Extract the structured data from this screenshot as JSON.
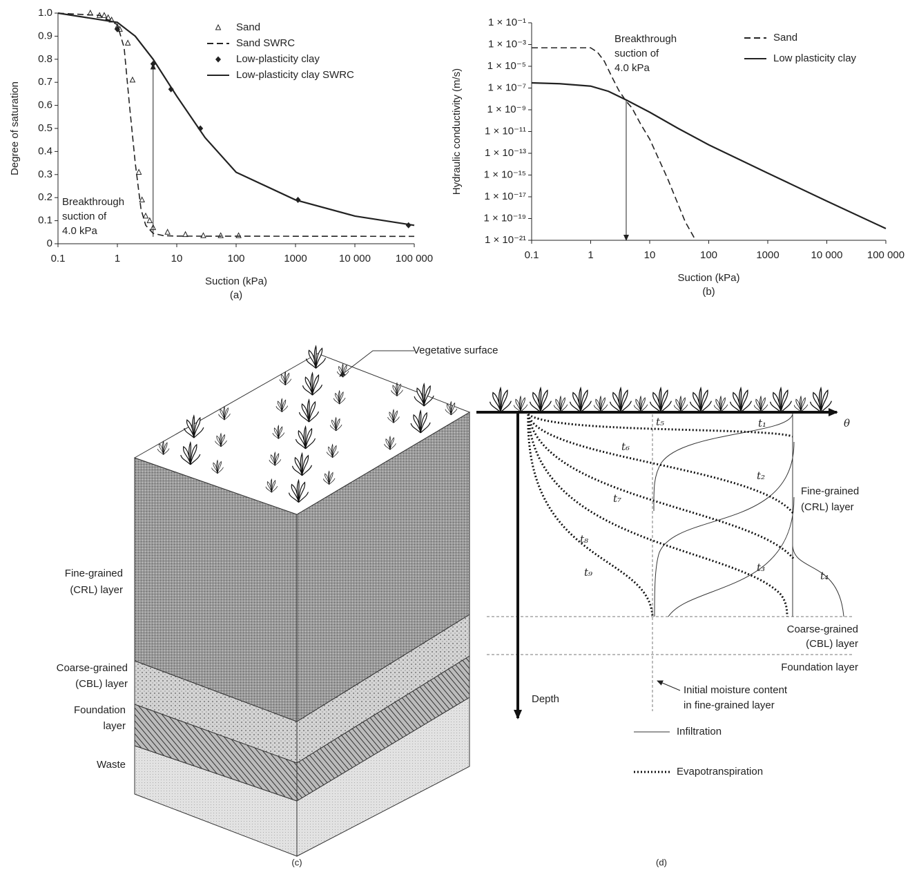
{
  "chart_data": [
    {
      "type": "line",
      "caption": "(a)",
      "xlabel": "Suction (kPa)",
      "ylabel": "Degree of saturation",
      "xscale": "log",
      "yscale": "linear",
      "xlim": [
        0.1,
        100000
      ],
      "ylim": [
        0,
        1
      ],
      "xticks": [
        0.1,
        1,
        10,
        100,
        1000,
        {
          "value": 10000,
          "label": "10 000"
        },
        {
          "value": 100000,
          "label": "100 000"
        }
      ],
      "yticks": [
        0,
        0.1,
        0.2,
        0.3,
        0.4,
        0.5,
        0.6,
        0.7,
        0.8,
        0.9,
        {
          "value": 1,
          "label": "1.0"
        }
      ],
      "legend": "upper right",
      "series": [
        {
          "name": "Sand",
          "color": "#222222",
          "marker": "triangle",
          "line_style": "none",
          "x": [
            0.35,
            0.5,
            0.6,
            0.7,
            0.8,
            1,
            1.1,
            1.5,
            1.8,
            2.3,
            2.6,
            3,
            3.5,
            4,
            7,
            14,
            28,
            55,
            110
          ],
          "values": [
            1.0,
            0.99,
            0.99,
            0.98,
            0.97,
            0.94,
            0.93,
            0.87,
            0.71,
            0.31,
            0.19,
            0.12,
            0.1,
            0.07,
            0.05,
            0.04,
            0.035,
            0.035,
            0.035
          ]
        },
        {
          "name": "Sand SWRC",
          "color": "#222222",
          "marker": "none",
          "line_style": "dashed",
          "x": [
            0.1,
            0.5,
            1,
            1.3,
            1.6,
            2,
            2.5,
            3,
            4,
            6,
            10,
            100000
          ],
          "values": [
            1.0,
            0.99,
            0.95,
            0.85,
            0.6,
            0.35,
            0.15,
            0.08,
            0.045,
            0.035,
            0.033,
            0.032
          ]
        },
        {
          "name": "Low-plasticity clay",
          "color": "#222222",
          "marker": "diamond",
          "line_style": "none",
          "x": [
            1,
            4,
            8,
            25,
            1100,
            80000
          ],
          "values": [
            0.93,
            0.78,
            0.67,
            0.5,
            0.19,
            0.08
          ]
        },
        {
          "name": "Low-plasticity clay SWRC",
          "color": "#222222",
          "marker": "none",
          "line_style": "solid",
          "x": [
            0.1,
            1,
            2,
            4,
            10,
            30,
            100,
            1000,
            10000,
            100000
          ],
          "values": [
            1.0,
            0.96,
            0.9,
            0.8,
            0.64,
            0.46,
            0.31,
            0.19,
            0.12,
            0.08
          ]
        }
      ],
      "annotation": {
        "lines": [
          "Breakthrough",
          "suction of",
          "4.0 kPa"
        ],
        "arrow": {
          "x": 4,
          "y": [
            0.03,
            0.78
          ]
        }
      }
    },
    {
      "type": "line",
      "caption": "(b)",
      "xlabel": "Suction (kPa)",
      "ylabel": "Hydraulic conductivity (m/s)",
      "xscale": "log",
      "yscale": "log",
      "xlim": [
        0.1,
        100000
      ],
      "ylim": [
        1e-21,
        0.1
      ],
      "xticks": [
        0.1,
        1,
        10,
        100,
        1000,
        {
          "value": 10000,
          "label": "10 000"
        },
        {
          "value": 100000,
          "label": "100 000"
        }
      ],
      "yticks": [
        {
          "value": 0.1,
          "label": "1 × 10⁻¹"
        },
        {
          "value": 0.001,
          "label": "1 × 10⁻³"
        },
        {
          "value": 1e-05,
          "label": "1 × 10⁻⁵"
        },
        {
          "value": 1e-07,
          "label": "1 × 10⁻⁷"
        },
        {
          "value": 1e-09,
          "label": "1 × 10⁻⁹"
        },
        {
          "value": 1e-11,
          "label": "1 × 10⁻¹¹"
        },
        {
          "value": 1e-13,
          "label": "1 × 10⁻¹³"
        },
        {
          "value": 1e-15,
          "label": "1 × 10⁻¹⁵"
        },
        {
          "value": 1e-17,
          "label": "1 × 10⁻¹⁷"
        },
        {
          "value": 1e-19,
          "label": "1 × 10⁻¹⁹"
        },
        {
          "value": 1e-21,
          "label": "1 × 10⁻²¹"
        }
      ],
      "legend": "upper right",
      "series": [
        {
          "name": "Sand",
          "color": "#222222",
          "marker": "none",
          "line_style": "dashed",
          "x": [
            0.1,
            0.5,
            1,
            1.3,
            1.7,
            2.3,
            3,
            4,
            5,
            7,
            10,
            20,
            40,
            60
          ],
          "values": [
            0.0005,
            0.0005,
            0.0005,
            0.0002,
            3e-05,
            1e-06,
            6e-08,
            6e-09,
            1.5e-09,
            5e-11,
            2e-12,
            5e-16,
            5e-20,
            1e-21
          ]
        },
        {
          "name": "Low plasticity clay",
          "color": "#222222",
          "marker": "none",
          "line_style": "solid",
          "x": [
            0.1,
            0.3,
            1,
            2,
            4,
            10,
            30,
            100,
            1000,
            10000,
            100000
          ],
          "values": [
            3e-07,
            2.5e-07,
            1.5e-07,
            5e-08,
            8e-09,
            6e-10,
            2e-11,
            6e-13,
            1.5e-15,
            4e-18,
            1.2e-20
          ]
        }
      ],
      "annotation": {
        "lines": [
          "Breakthrough",
          "suction of",
          "4.0 kPa"
        ],
        "arrow": {
          "x": 4,
          "y": [
            8e-09,
            1e-21
          ]
        }
      }
    }
  ],
  "diagram_c": {
    "caption": "(c)",
    "vegetative_surface": "Vegetative surface",
    "fine_grained": [
      "Fine-grained",
      "(CRL) layer"
    ],
    "coarse_grained": [
      "Coarse-grained",
      "(CBL) layer"
    ],
    "foundation": [
      "Foundation",
      "layer"
    ],
    "waste": "Waste"
  },
  "diagram_d": {
    "caption": "(d)",
    "theta": "θ",
    "depth": "Depth",
    "curve_labels": [
      "t₁",
      "t₂",
      "t₃",
      "t₄",
      "t₅",
      "t₆",
      "t₇",
      "t₈",
      "t₉"
    ],
    "fine_grained": [
      "Fine-grained",
      "(CRL) layer"
    ],
    "coarse_grained": [
      "Coarse-grained",
      "(CBL) layer"
    ],
    "foundation": "Foundation layer",
    "initial_moisture": [
      "Initial moisture content",
      "in fine-grained layer"
    ],
    "legend": [
      "Infiltration",
      "Evapotranspiration"
    ]
  }
}
